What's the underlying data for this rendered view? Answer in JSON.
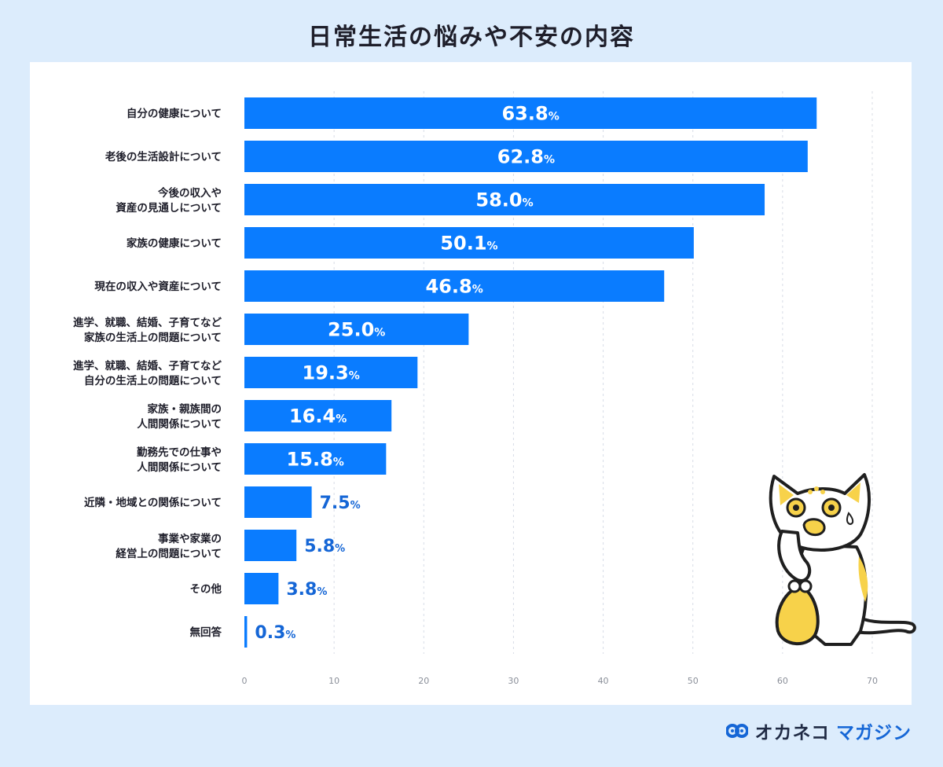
{
  "title": "日常生活の悩みや不安の内容",
  "brand": {
    "name": "オカネコ",
    "sub": "マガジン"
  },
  "chart_data": {
    "type": "bar",
    "orientation": "horizontal",
    "title": "日常生活の悩みや不安の内容",
    "value_suffix": "%",
    "categories": [
      "自分の健康について",
      "老後の生活設計について",
      "今後の収入や\n資産の見通しについて",
      "家族の健康について",
      "現在の収入や資産について",
      "進学、就職、結婚、子育てなど\n家族の生活上の問題について",
      "進学、就職、結婚、子育てなど\n自分の生活上の問題について",
      "家族・親族間の\n人間関係について",
      "勤務先での仕事や\n人間関係について",
      "近隣・地域との関係について",
      "事業や家業の\n経営上の問題について",
      "その他",
      "無回答"
    ],
    "values": [
      63.8,
      62.8,
      58.0,
      50.1,
      46.8,
      25.0,
      19.3,
      16.4,
      15.8,
      7.5,
      5.8,
      3.8,
      0.3
    ],
    "value_labels": [
      "63.8",
      "62.8",
      "58.0",
      "50.1",
      "46.8",
      "25.0",
      "19.3",
      "16.4",
      "15.8",
      "7.5",
      "5.8",
      "3.8",
      "0.3"
    ],
    "xlim": [
      0,
      70
    ],
    "xticks": [
      0,
      10,
      20,
      30,
      40,
      50,
      60,
      70
    ],
    "grid": true,
    "bar_color": "#0a7cff",
    "inside_label_color": "#ffffff",
    "outside_label_color": "#1566d6"
  }
}
